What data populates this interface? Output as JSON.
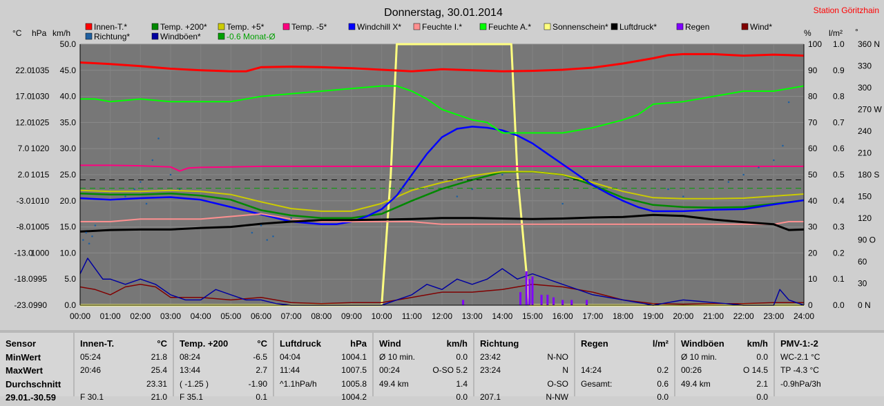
{
  "chart_data": {
    "type": "line",
    "title": "Donnerstag, 30.01.2014",
    "station": "Station Göritzhain",
    "x_ticks": [
      "00:00",
      "01:00",
      "02:00",
      "03:00",
      "04:00",
      "05:00",
      "06:00",
      "07:00",
      "08:00",
      "09:00",
      "10:00",
      "11:00",
      "12:00",
      "13:00",
      "14:00",
      "15:00",
      "16:00",
      "17:00",
      "18:00",
      "19:00",
      "20:00",
      "21:00",
      "22:00",
      "23:00",
      "24:00"
    ],
    "x_range_hours": [
      0,
      24
    ],
    "axes": {
      "temp": {
        "unit": "°C",
        "ticks": [
          "22.0",
          "17.0",
          "12.0",
          "7.0",
          "2.0",
          "-3.0",
          "-8.0",
          "-13.0",
          "-18.0",
          "-23.0"
        ],
        "range": [
          -23,
          27
        ]
      },
      "pressure": {
        "unit": "hPa",
        "ticks": [
          "1035",
          "1030",
          "1025",
          "1020",
          "1015",
          "1010",
          "1005",
          "1000",
          "995",
          "990"
        ],
        "range": [
          990,
          1040
        ]
      },
      "wind": {
        "unit": "km/h",
        "ticks": [
          "50.0",
          "45.0",
          "40.0",
          "35.0",
          "30.0",
          "25.0",
          "20.0",
          "15.0",
          "10.0",
          "5.0",
          "0.0"
        ],
        "range": [
          0,
          50
        ]
      },
      "humidity": {
        "unit": "%",
        "ticks": [
          "100",
          "90",
          "80",
          "70",
          "60",
          "50",
          "40",
          "30",
          "20",
          "10",
          "0"
        ],
        "range": [
          0,
          100
        ]
      },
      "rain": {
        "unit": "l/m²",
        "ticks": [
          "1.0",
          "0.9",
          "0.8",
          "0.7",
          "0.6",
          "0.5",
          "0.4",
          "0.3",
          "0.2",
          "0.1",
          "0.0"
        ],
        "range": [
          0,
          1
        ]
      },
      "direction": {
        "unit": "°",
        "ticks": [
          "360 N",
          "330",
          "300",
          "270 W",
          "240",
          "210",
          "180 S",
          "150",
          "120",
          "90 O",
          "60",
          "30",
          "0 N"
        ],
        "range": [
          0,
          360
        ]
      }
    },
    "legend": [
      {
        "name": "Innen-T.*",
        "color": "#ff0000"
      },
      {
        "name": "Temp. +200*",
        "color": "#008800"
      },
      {
        "name": "Temp. +5*",
        "color": "#cccc00"
      },
      {
        "name": "Temp. -5*",
        "color": "#ff0080"
      },
      {
        "name": "Windchill X*",
        "color": "#0000ff"
      },
      {
        "name": "Feuchte I.*",
        "color": "#ff9090"
      },
      {
        "name": "Feuchte A.*",
        "color": "#00ff00"
      },
      {
        "name": "Sonnenschein*",
        "color": "#ffff80"
      },
      {
        "name": "Luftdruck*",
        "color": "#000000"
      },
      {
        "name": "Regen",
        "color": "#8000ff"
      },
      {
        "name": "Wind*",
        "color": "#800000"
      },
      {
        "name": "Richtung*",
        "color": "#2060a0"
      },
      {
        "name": "Windböen*",
        "color": "#0000a0"
      },
      {
        "name": "-0.6 Monat-Ø",
        "color": "#00a000"
      }
    ],
    "reference_lines": [
      {
        "axis": "temp",
        "value": 1.0,
        "color": "#000000"
      },
      {
        "axis": "temp",
        "value": -0.6,
        "color": "#00a000"
      }
    ],
    "series": [
      {
        "name": "Innen-T.*",
        "axis": "temp",
        "color": "#ff0000",
        "x": [
          0,
          1,
          2,
          3,
          4,
          5,
          5.5,
          6,
          7,
          8,
          9,
          10,
          11,
          12,
          13,
          14,
          15,
          16,
          17,
          18,
          19,
          19.5,
          20,
          21,
          22,
          23,
          24
        ],
        "y": [
          23.5,
          23.2,
          22.8,
          22.3,
          22.0,
          21.8,
          21.8,
          22.6,
          22.7,
          22.6,
          22.4,
          22.1,
          21.8,
          22.2,
          22.0,
          21.8,
          21.9,
          22.1,
          22.5,
          23.3,
          24.3,
          24.9,
          25.1,
          25.1,
          24.8,
          25.0,
          24.8
        ]
      },
      {
        "name": "Temp. +200*",
        "axis": "temp",
        "color": "#008800",
        "x": [
          0,
          1,
          2,
          3,
          4,
          5,
          6,
          7,
          8,
          9,
          10,
          11,
          12,
          13,
          14,
          15,
          16,
          17,
          18,
          19,
          20,
          21,
          22,
          23,
          24
        ],
        "y": [
          -1.6,
          -1.8,
          -1.8,
          -1.6,
          -2.0,
          -2.8,
          -4.8,
          -5.8,
          -6.3,
          -6.3,
          -5.5,
          -3.0,
          -0.7,
          1.0,
          2.5,
          2.6,
          2.0,
          0.0,
          -2.4,
          -3.8,
          -4.2,
          -4.3,
          -4.2,
          -3.6,
          -2.9
        ]
      },
      {
        "name": "Temp. +5*",
        "axis": "temp",
        "color": "#cccc00",
        "x": [
          0,
          1,
          2,
          3,
          4,
          5,
          6,
          7,
          8,
          9,
          10,
          11,
          12,
          13,
          14,
          15,
          16,
          17,
          18,
          19,
          20,
          21,
          22,
          23,
          24
        ],
        "y": [
          -1.0,
          -1.2,
          -1.2,
          -1.0,
          -1.2,
          -1.8,
          -3.2,
          -4.5,
          -5.0,
          -5.0,
          -3.5,
          -1.0,
          0.5,
          1.8,
          2.6,
          2.6,
          2.0,
          0.5,
          -1.2,
          -2.4,
          -2.6,
          -2.6,
          -2.5,
          -2.1,
          -1.7
        ]
      },
      {
        "name": "Temp. -5*",
        "axis": "temp",
        "color": "#ff0080",
        "x": [
          0,
          1,
          2,
          3,
          3.3,
          3.6,
          4,
          5,
          6,
          7,
          8,
          9,
          10,
          11,
          12,
          13,
          14,
          15,
          16,
          17,
          18,
          19,
          20,
          21,
          22,
          23,
          24
        ],
        "y": [
          3.8,
          3.8,
          3.7,
          3.5,
          2.7,
          3.3,
          3.4,
          3.5,
          3.6,
          3.6,
          3.6,
          3.6,
          3.6,
          3.6,
          3.6,
          3.6,
          3.6,
          3.6,
          3.6,
          3.6,
          3.6,
          3.6,
          3.6,
          3.6,
          3.6,
          3.6,
          3.6
        ]
      },
      {
        "name": "Windchill X*",
        "axis": "temp",
        "color": "#0000ff",
        "x": [
          0,
          1,
          2,
          3,
          4,
          5,
          6,
          7,
          8,
          8.5,
          9,
          9.5,
          10,
          10.5,
          11,
          11.5,
          12,
          12.5,
          13,
          13.5,
          14,
          14.5,
          15,
          15.5,
          16,
          16.5,
          17,
          17.5,
          18,
          18.5,
          19,
          20,
          21,
          22,
          23,
          24
        ],
        "y": [
          -2.5,
          -2.8,
          -2.5,
          -2.3,
          -2.8,
          -4.2,
          -5.6,
          -7.0,
          -7.5,
          -7.5,
          -7.0,
          -6.0,
          -4.6,
          -2.0,
          2.0,
          6.0,
          9.2,
          10.8,
          11.2,
          11.0,
          10.5,
          9.5,
          8.0,
          6.0,
          4.0,
          2.0,
          0.0,
          -1.6,
          -3.0,
          -4.2,
          -5.0,
          -5.0,
          -4.7,
          -4.6,
          -3.7,
          -2.9
        ]
      },
      {
        "name": "Feuchte I.*",
        "axis": "humidity",
        "color": "#ff9090",
        "x": [
          0,
          1,
          2,
          3,
          4,
          5,
          6,
          7,
          8,
          9,
          10,
          11,
          12,
          13,
          14,
          15,
          16,
          17,
          18,
          19,
          20,
          21,
          22,
          23,
          23.5,
          24
        ],
        "y": [
          32,
          32,
          33,
          33,
          33,
          34,
          35,
          33,
          32,
          32,
          32,
          32,
          31,
          31,
          31,
          31,
          31,
          31,
          31,
          31,
          31,
          31,
          31,
          31,
          32,
          32
        ]
      },
      {
        "name": "Feuchte A.*",
        "axis": "humidity",
        "color": "#00ff00",
        "x": [
          0,
          0.5,
          1,
          2,
          3,
          4,
          5,
          6,
          7,
          8,
          9,
          10,
          10.5,
          11,
          11.5,
          12,
          12.5,
          13,
          13.5,
          14,
          14.5,
          15,
          16,
          17,
          18,
          18.5,
          19,
          20,
          21,
          22,
          23,
          24
        ],
        "y": [
          79,
          79,
          78,
          79,
          78,
          78,
          78,
          80,
          81,
          82,
          83,
          84,
          84,
          82,
          79,
          75,
          73,
          71,
          70,
          66,
          66,
          66,
          66,
          68,
          71,
          73,
          77,
          78,
          80,
          82,
          82,
          84
        ]
      },
      {
        "name": "Sonnenschein*",
        "axis": "humidity",
        "color": "#ffff80",
        "x": [
          0,
          10,
          10.3,
          10.5,
          14.3,
          14.5,
          14.9,
          15,
          24
        ],
        "y": [
          0,
          0,
          50,
          100,
          100,
          50,
          0,
          0,
          0
        ]
      },
      {
        "name": "Luftdruck*",
        "axis": "pressure",
        "color": "#000000",
        "x": [
          0,
          1,
          2,
          3,
          4,
          5,
          6,
          7,
          8,
          9,
          10,
          11,
          12,
          13,
          14,
          15,
          16,
          17,
          18,
          19,
          20,
          21,
          22,
          23,
          23.5,
          24
        ],
        "y": [
          1004.1,
          1004.4,
          1004.5,
          1004.5,
          1004.8,
          1005.0,
          1005.6,
          1006.0,
          1006.3,
          1006.3,
          1006.4,
          1006.5,
          1006.7,
          1006.7,
          1006.6,
          1006.5,
          1006.6,
          1006.8,
          1006.9,
          1007.3,
          1007.1,
          1006.4,
          1005.9,
          1005.5,
          1004.4,
          1004.5
        ]
      },
      {
        "name": "Wind*",
        "axis": "wind",
        "color": "#800000",
        "x": [
          0,
          0.5,
          1,
          1.5,
          2,
          2.5,
          3,
          4,
          5,
          6,
          7,
          8,
          9,
          10,
          11,
          12,
          13,
          14,
          14.5,
          15,
          16,
          17,
          18,
          19,
          20,
          21,
          22,
          23,
          24
        ],
        "y": [
          3.5,
          3.0,
          2.0,
          3.5,
          4.0,
          3.5,
          1.5,
          1.5,
          1.0,
          1.5,
          0.5,
          0.3,
          0.5,
          0.5,
          1.5,
          2.5,
          2.5,
          3.0,
          3.5,
          4.0,
          3.5,
          2.5,
          1.0,
          0.3,
          0.2,
          0.3,
          0.3,
          0.5,
          0.5
        ]
      },
      {
        "name": "Windböen*",
        "axis": "wind",
        "color": "#0000a0",
        "x": [
          0,
          0.25,
          0.5,
          0.75,
          1,
          1.5,
          2,
          2.5,
          3,
          3.5,
          4,
          4.5,
          5,
          5.5,
          6,
          6.5,
          7,
          8,
          9,
          10,
          10.5,
          11,
          11.5,
          12,
          12.5,
          13,
          13.5,
          14,
          14.5,
          15,
          15.5,
          16,
          16.5,
          17,
          18,
          19,
          20,
          21,
          22,
          23,
          23.2,
          23.5,
          24
        ],
        "y": [
          6,
          9,
          7,
          5,
          5,
          4,
          5,
          4,
          2,
          1,
          1,
          3,
          2,
          1,
          1,
          0.3,
          0,
          0,
          0,
          0,
          1,
          2,
          4,
          3,
          5,
          4,
          5,
          7,
          5,
          6,
          5,
          4,
          3,
          2,
          1,
          0,
          1,
          0.5,
          0,
          0,
          3,
          1,
          0
        ]
      },
      {
        "name": "Richtung*",
        "axis": "direction",
        "style": "dots",
        "color": "#2060a0",
        "x": [
          0.1,
          0.2,
          0.3,
          0.4,
          0.5,
          1.5,
          1.8,
          2.0,
          2.2,
          2.4,
          2.6,
          3.0,
          3.3,
          5.7,
          6.0,
          6.2,
          6.4,
          7.0,
          12.5,
          13.0,
          14.0,
          16.0,
          19.5,
          20.0,
          21.5,
          22.0,
          22.5,
          23.0,
          23.3,
          23.5
        ],
        "y": [
          90,
          100,
          85,
          95,
          110,
          150,
          160,
          170,
          140,
          200,
          230,
          180,
          160,
          100,
          110,
          90,
          95,
          120,
          150,
          160,
          180,
          140,
          160,
          150,
          170,
          180,
          190,
          200,
          220,
          280
        ]
      },
      {
        "name": "Regen",
        "axis": "rain",
        "type": "bar",
        "color": "#8000ff",
        "x": [
          12.7,
          14.6,
          14.8,
          14.9,
          15.0,
          15.3,
          15.5,
          15.7,
          16.0,
          16.3,
          16.8
        ],
        "y": [
          0.02,
          0.05,
          0.13,
          0.1,
          0.11,
          0.04,
          0.04,
          0.03,
          0.02,
          0.02,
          0.02
        ]
      }
    ]
  },
  "table": [
    {
      "header": [
        "Sensor",
        ""
      ],
      "rows": [
        [
          "MinWert",
          ""
        ],
        [
          "MaxWert",
          ""
        ],
        [
          "Durchschnitt",
          ""
        ],
        [
          "29.01.-30.59",
          ""
        ]
      ]
    },
    {
      "header": [
        "Innen-T.",
        "°C"
      ],
      "rows": [
        [
          "05:24",
          "21.8"
        ],
        [
          "20:46",
          "25.4"
        ],
        [
          "",
          "23.31"
        ],
        [
          "F 30.1",
          "21.0"
        ]
      ]
    },
    {
      "header": [
        "Temp. +200",
        "°C"
      ],
      "rows": [
        [
          "08:24",
          "-6.5"
        ],
        [
          "13:44",
          "2.7"
        ],
        [
          "( -1.25 )",
          "-1.90"
        ],
        [
          "F 35.1",
          "0.1"
        ]
      ]
    },
    {
      "header": [
        "Luftdruck",
        "hPa"
      ],
      "rows": [
        [
          "04:04",
          "1004.1"
        ],
        [
          "11:44",
          "1007.5"
        ],
        [
          "^1.1hPa/h",
          "1005.8"
        ],
        [
          "",
          "1004.2"
        ]
      ]
    },
    {
      "header": [
        "Wind",
        "km/h"
      ],
      "rows": [
        [
          "Ø 10 min.",
          "0.0"
        ],
        [
          "00:24",
          "O-SO 5.2"
        ],
        [
          "49.4 km",
          "1.4"
        ],
        [
          "",
          "0.0"
        ]
      ]
    },
    {
      "header": [
        "Richtung",
        ""
      ],
      "rows": [
        [
          "23:42",
          "N-NO"
        ],
        [
          "23:24",
          "N"
        ],
        [
          "",
          "O-SO"
        ],
        [
          "207.1",
          "N-NW"
        ]
      ]
    },
    {
      "header": [
        "Regen",
        "l/m²"
      ],
      "rows": [
        [
          "",
          ""
        ],
        [
          "14:24",
          "0.2"
        ],
        [
          "Gesamt:",
          "0.6"
        ],
        [
          "",
          "0.0"
        ]
      ]
    },
    {
      "header": [
        "Windböen",
        "km/h"
      ],
      "rows": [
        [
          "Ø 10 min.",
          "0.0"
        ],
        [
          "00:26",
          "O 14.5"
        ],
        [
          "49.4 km",
          "2.1"
        ],
        [
          "",
          "0.0"
        ]
      ]
    },
    {
      "header": [
        "PMV-1:-2",
        ""
      ],
      "rows": [
        [
          "WC-2.1 °C",
          ""
        ],
        [
          "TP -4.3 °C",
          ""
        ],
        [
          "-0.9hPa/3h",
          ""
        ],
        [
          "",
          ""
        ]
      ]
    }
  ]
}
